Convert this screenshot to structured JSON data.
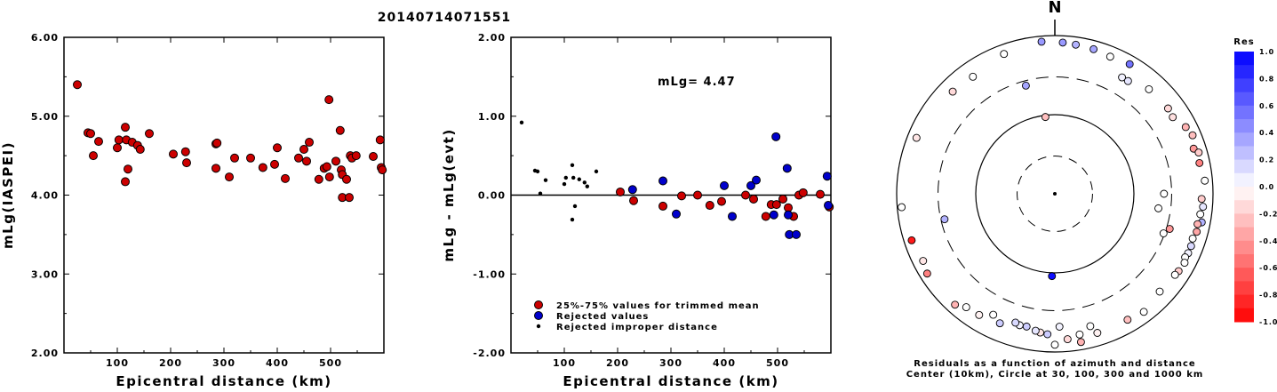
{
  "title": "20140714071551",
  "chart_data": [
    {
      "type": "scatter",
      "xlabel": "Epicentral distance (km)",
      "ylabel": "mLg(IASPEI)",
      "xlim": [
        0,
        600
      ],
      "ylim": [
        2.0,
        6.0
      ],
      "x_ticks": [
        "100",
        "200",
        "300",
        "400",
        "500"
      ],
      "y_ticks": [
        "2.00",
        "3.00",
        "4.00",
        "5.00",
        "6.00"
      ],
      "series": [
        {
          "color": "#cc0000",
          "points": [
            [
              25,
              5.4
            ],
            [
              45,
              4.79
            ],
            [
              50,
              4.78
            ],
            [
              55,
              4.5
            ],
            [
              65,
              4.68
            ],
            [
              100,
              4.6
            ],
            [
              103,
              4.7
            ],
            [
              115,
              4.86
            ],
            [
              117,
              4.7
            ],
            [
              120,
              4.33
            ],
            [
              115,
              4.17
            ],
            [
              128,
              4.67
            ],
            [
              138,
              4.63
            ],
            [
              143,
              4.58
            ],
            [
              160,
              4.78
            ],
            [
              205,
              4.52
            ],
            [
              228,
              4.55
            ],
            [
              230,
              4.41
            ],
            [
              285,
              4.65
            ],
            [
              287,
              4.66
            ],
            [
              285,
              4.34
            ],
            [
              310,
              4.23
            ],
            [
              320,
              4.47
            ],
            [
              350,
              4.47
            ],
            [
              373,
              4.35
            ],
            [
              395,
              4.39
            ],
            [
              400,
              4.6
            ],
            [
              415,
              4.21
            ],
            [
              440,
              4.47
            ],
            [
              450,
              4.58
            ],
            [
              455,
              4.43
            ],
            [
              460,
              4.67
            ],
            [
              478,
              4.2
            ],
            [
              488,
              4.34
            ],
            [
              493,
              4.36
            ],
            [
              497,
              5.21
            ],
            [
              498,
              4.23
            ],
            [
              510,
              4.43
            ],
            [
              518,
              4.82
            ],
            [
              520,
              4.32
            ],
            [
              522,
              4.26
            ],
            [
              522,
              3.97
            ],
            [
              530,
              4.2
            ],
            [
              535,
              3.97
            ],
            [
              537,
              4.5
            ],
            [
              540,
              4.47
            ],
            [
              548,
              4.5
            ],
            [
              580,
              4.49
            ],
            [
              593,
              4.7
            ],
            [
              595,
              4.35
            ],
            [
              597,
              4.32
            ]
          ]
        }
      ]
    },
    {
      "type": "scatter",
      "xlabel": "Epicentral distance (km)",
      "ylabel": "mLg - mLg(evt)",
      "xlim": [
        0,
        600
      ],
      "ylim": [
        -2.0,
        2.0
      ],
      "x_ticks": [
        "100",
        "200",
        "300",
        "400",
        "500"
      ],
      "y_ticks": [
        "-2.00",
        "-1.00",
        "0.00",
        "1.00",
        "2.00"
      ],
      "annotation": "mLg= 4.47",
      "legend": {
        "position": "bottom-center",
        "entries": [
          {
            "label": "25%-75% values for trimmed mean",
            "color": "#cc0000"
          },
          {
            "label": "Rejected values",
            "color": "#0000cc"
          },
          {
            "label": "Rejected improper distance",
            "color": "#000000"
          }
        ]
      },
      "series": [
        {
          "name": "25%-75% values for trimmed mean",
          "color": "#cc0000",
          "points": [
            [
              205,
              0.04
            ],
            [
              230,
              -0.07
            ],
            [
              285,
              -0.14
            ],
            [
              320,
              -0.01
            ],
            [
              350,
              0.0
            ],
            [
              373,
              -0.13
            ],
            [
              395,
              -0.08
            ],
            [
              440,
              0.0
            ],
            [
              455,
              -0.05
            ],
            [
              478,
              -0.27
            ],
            [
              488,
              -0.12
            ],
            [
              498,
              -0.12
            ],
            [
              510,
              -0.05
            ],
            [
              520,
              -0.16
            ],
            [
              530,
              -0.27
            ],
            [
              540,
              0.0
            ],
            [
              548,
              0.03
            ],
            [
              580,
              0.01
            ],
            [
              597,
              -0.15
            ]
          ]
        },
        {
          "name": "Rejected values",
          "color": "#0000cc",
          "points": [
            [
              228,
              0.07
            ],
            [
              285,
              0.18
            ],
            [
              310,
              -0.24
            ],
            [
              400,
              0.12
            ],
            [
              415,
              -0.27
            ],
            [
              450,
              0.12
            ],
            [
              460,
              0.19
            ],
            [
              493,
              -0.25
            ],
            [
              497,
              0.74
            ],
            [
              518,
              0.34
            ],
            [
              520,
              -0.25
            ],
            [
              522,
              -0.5
            ],
            [
              535,
              -0.5
            ],
            [
              593,
              0.24
            ],
            [
              595,
              -0.13
            ]
          ]
        },
        {
          "name": "Rejected improper distance",
          "color": "#000000",
          "points": [
            [
              20,
              0.92
            ],
            [
              45,
              0.31
            ],
            [
              50,
              0.3
            ],
            [
              55,
              0.02
            ],
            [
              65,
              0.19
            ],
            [
              100,
              0.14
            ],
            [
              103,
              0.22
            ],
            [
              115,
              0.38
            ],
            [
              117,
              0.22
            ],
            [
              120,
              -0.14
            ],
            [
              115,
              -0.31
            ],
            [
              128,
              0.2
            ],
            [
              138,
              0.16
            ],
            [
              143,
              0.11
            ],
            [
              160,
              0.3
            ]
          ]
        }
      ]
    },
    {
      "type": "scatter",
      "subtype": "polar",
      "north_label": "N",
      "caption": [
        "Residuals as a function of azimuth and distance",
        "Center (10km), Circle at 30, 100, 300 and 1000 km"
      ],
      "colorbar": {
        "title": "Res",
        "ticks": [
          "1.0",
          "0.8",
          "0.6",
          "0.4",
          "0.2",
          "0.0",
          "-0.2",
          "-0.4",
          "-0.6",
          "-0.8",
          "-1.0"
        ],
        "range": [
          -1.0,
          1.0
        ]
      },
      "points": [
        {
          "az": 353,
          "dist": 95,
          "res": -0.25
        },
        {
          "az": 8,
          "dist": 800,
          "res": 0.3
        },
        {
          "az": 15,
          "dist": 780,
          "res": 0.35
        },
        {
          "az": 22,
          "dist": 740,
          "res": 0.0
        },
        {
          "az": 30,
          "dist": 780,
          "res": 0.55
        },
        {
          "az": 30,
          "dist": 500,
          "res": 0.05
        },
        {
          "az": 33,
          "dist": 500,
          "res": 0.1
        },
        {
          "az": 42,
          "dist": 600,
          "res": 0.0
        },
        {
          "az": 53,
          "dist": 620,
          "res": -0.15
        },
        {
          "az": 57,
          "dist": 600,
          "res": -0.12
        },
        {
          "az": 63,
          "dist": 720,
          "res": -0.3
        },
        {
          "az": 67,
          "dist": 780,
          "res": -0.25
        },
        {
          "az": 72,
          "dist": 700,
          "res": -0.4
        },
        {
          "az": 74,
          "dist": 780,
          "res": -0.2
        },
        {
          "az": 78,
          "dist": 740,
          "res": -0.5
        },
        {
          "az": 85,
          "dist": 800,
          "res": 0.0
        },
        {
          "az": 92,
          "dist": 720,
          "res": -0.2
        },
        {
          "az": 95,
          "dist": 760,
          "res": 0.1
        },
        {
          "az": 98,
          "dist": 720,
          "res": 0.0
        },
        {
          "az": 101,
          "dist": 780,
          "res": 0.3
        },
        {
          "az": 102,
          "dist": 700,
          "res": -0.3
        },
        {
          "az": 105,
          "dist": 720,
          "res": -0.35
        },
        {
          "az": 108,
          "dist": 680,
          "res": 0.0
        },
        {
          "az": 111,
          "dist": 700,
          "res": 0.15
        },
        {
          "az": 114,
          "dist": 700,
          "res": 0.05
        },
        {
          "az": 116,
          "dist": 680,
          "res": 0.0
        },
        {
          "az": 118,
          "dist": 720,
          "res": 0.0
        },
        {
          "az": 122,
          "dist": 700,
          "res": -0.2
        },
        {
          "az": 124,
          "dist": 680,
          "res": 0.0
        },
        {
          "az": 98,
          "dist": 210,
          "res": 0.0
        },
        {
          "az": 90,
          "dist": 240,
          "res": 0.0
        },
        {
          "az": 107,
          "dist": 330,
          "res": -0.4
        },
        {
          "az": 110,
          "dist": 290,
          "res": 0.0
        },
        {
          "az": 133,
          "dist": 650,
          "res": 0.0
        },
        {
          "az": 143,
          "dist": 740,
          "res": 0.0
        },
        {
          "az": 150,
          "dist": 690,
          "res": -0.25
        },
        {
          "az": 163,
          "dist": 690,
          "res": -0.05
        },
        {
          "az": 165,
          "dist": 540,
          "res": 0.0
        },
        {
          "az": 170,
          "dist": 640,
          "res": 0.0
        },
        {
          "az": 170,
          "dist": 800,
          "res": -0.3
        },
        {
          "az": 175,
          "dist": 700,
          "res": -0.15
        },
        {
          "az": 180,
          "dist": 810,
          "res": 0.0
        },
        {
          "az": 178,
          "dist": 480,
          "res": 0.05
        },
        {
          "az": 183,
          "dist": 600,
          "res": 0.2
        },
        {
          "az": 186,
          "dist": 580,
          "res": -0.1
        },
        {
          "az": 188,
          "dist": 560,
          "res": 0.1
        },
        {
          "az": 192,
          "dist": 520,
          "res": 0.2
        },
        {
          "az": 195,
          "dist": 525,
          "res": 0.05
        },
        {
          "az": 197,
          "dist": 505,
          "res": 0.15
        },
        {
          "az": 203,
          "dist": 600,
          "res": 0.2
        },
        {
          "az": 207,
          "dist": 520,
          "res": 0.0
        },
        {
          "az": 212,
          "dist": 640,
          "res": -0.05
        },
        {
          "az": 218,
          "dist": 660,
          "res": 0.0
        },
        {
          "az": 222,
          "dist": 770,
          "res": -0.3
        },
        {
          "az": 238,
          "dist": 800,
          "res": -0.5
        },
        {
          "az": 252,
          "dist": 800,
          "res": -0.9
        },
        {
          "az": 243,
          "dist": 740,
          "res": -0.1
        },
        {
          "az": 257,
          "dist": 270,
          "res": 0.3
        },
        {
          "az": 265,
          "dist": 880,
          "res": 0.0
        },
        {
          "az": 292,
          "dist": 770,
          "res": -0.1
        },
        {
          "az": 315,
          "dist": 670,
          "res": -0.15
        },
        {
          "az": 325,
          "dist": 640,
          "res": 0.0
        },
        {
          "az": 345,
          "dist": 260,
          "res": 0.35
        },
        {
          "az": 355,
          "dist": 850,
          "res": 0.4
        },
        {
          "az": 3,
          "dist": 820,
          "res": 0.4
        },
        {
          "az": 182,
          "dist": 110,
          "res": 0.95
        },
        {
          "az": 340,
          "dist": 760,
          "res": 0.0
        }
      ]
    }
  ]
}
